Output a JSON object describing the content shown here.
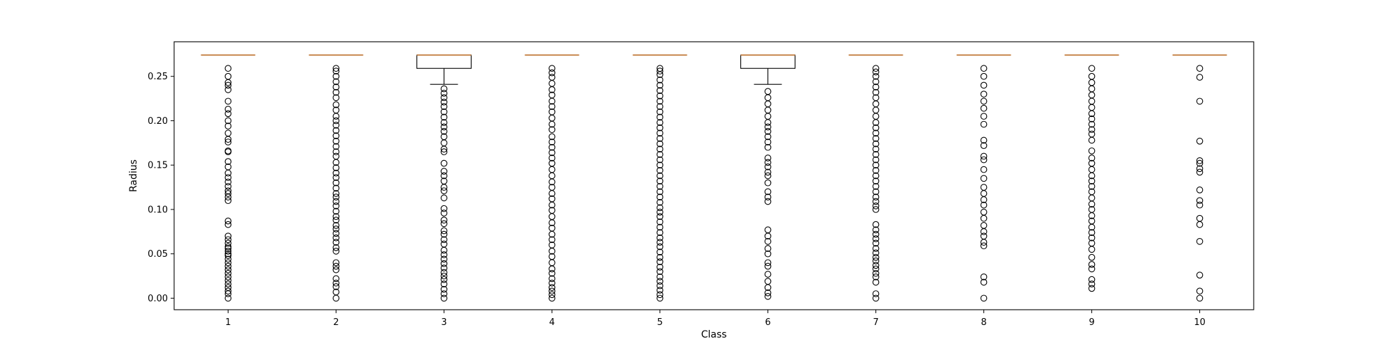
{
  "chart_data": {
    "type": "box",
    "xlabel": "Class",
    "ylabel": "Radius",
    "ylim": [
      -0.013,
      0.289
    ],
    "y_ticks": [
      "0.00",
      "0.05",
      "0.10",
      "0.15",
      "0.20",
      "0.25"
    ],
    "categories": [
      "1",
      "2",
      "3",
      "4",
      "5",
      "6",
      "7",
      "8",
      "9",
      "10"
    ],
    "grid": false,
    "legend": "none",
    "colors": {
      "median": "#c8884f",
      "box": "#000000",
      "flier": "#000000"
    },
    "boxes": [
      {
        "category": "1",
        "q1": 0.274,
        "median": 0.274,
        "q3": 0.274,
        "whisker_low": 0.274,
        "whisker_high": 0.274,
        "outliers": [
          0.0,
          0.005,
          0.008,
          0.012,
          0.016,
          0.02,
          0.024,
          0.028,
          0.032,
          0.036,
          0.04,
          0.044,
          0.048,
          0.05,
          0.053,
          0.056,
          0.058,
          0.062,
          0.066,
          0.07,
          0.083,
          0.087,
          0.11,
          0.114,
          0.118,
          0.121,
          0.126,
          0.131,
          0.136,
          0.141,
          0.148,
          0.154,
          0.165,
          0.166,
          0.176,
          0.179,
          0.186,
          0.194,
          0.2,
          0.208,
          0.213,
          0.222,
          0.235,
          0.24,
          0.243,
          0.25,
          0.259
        ]
      },
      {
        "category": "2",
        "q1": 0.274,
        "median": 0.274,
        "q3": 0.274,
        "whisker_low": 0.274,
        "whisker_high": 0.274,
        "outliers": [
          0.0,
          0.007,
          0.013,
          0.017,
          0.022,
          0.032,
          0.036,
          0.04,
          0.053,
          0.057,
          0.063,
          0.068,
          0.073,
          0.078,
          0.082,
          0.088,
          0.092,
          0.098,
          0.104,
          0.109,
          0.114,
          0.118,
          0.124,
          0.13,
          0.136,
          0.141,
          0.147,
          0.153,
          0.16,
          0.165,
          0.171,
          0.177,
          0.183,
          0.189,
          0.195,
          0.2,
          0.205,
          0.212,
          0.218,
          0.226,
          0.232,
          0.238,
          0.244,
          0.25,
          0.256,
          0.259
        ]
      },
      {
        "category": "3",
        "q1": 0.259,
        "median": 0.274,
        "q3": 0.274,
        "whisker_low": 0.241,
        "whisker_high": 0.274,
        "outliers": [
          0.0,
          0.005,
          0.01,
          0.016,
          0.021,
          0.025,
          0.029,
          0.034,
          0.039,
          0.044,
          0.049,
          0.054,
          0.061,
          0.066,
          0.072,
          0.076,
          0.084,
          0.088,
          0.096,
          0.101,
          0.113,
          0.121,
          0.125,
          0.132,
          0.138,
          0.143,
          0.152,
          0.165,
          0.168,
          0.175,
          0.182,
          0.188,
          0.193,
          0.198,
          0.204,
          0.21,
          0.216,
          0.221,
          0.226,
          0.231,
          0.236
        ]
      },
      {
        "category": "4",
        "q1": 0.274,
        "median": 0.274,
        "q3": 0.274,
        "whisker_low": 0.274,
        "whisker_high": 0.274,
        "outliers": [
          0.0,
          0.004,
          0.008,
          0.012,
          0.017,
          0.022,
          0.028,
          0.033,
          0.04,
          0.047,
          0.053,
          0.06,
          0.066,
          0.072,
          0.079,
          0.085,
          0.092,
          0.099,
          0.105,
          0.112,
          0.118,
          0.125,
          0.131,
          0.138,
          0.145,
          0.152,
          0.158,
          0.164,
          0.17,
          0.176,
          0.182,
          0.19,
          0.196,
          0.203,
          0.21,
          0.216,
          0.222,
          0.229,
          0.235,
          0.242,
          0.249,
          0.254,
          0.259
        ]
      },
      {
        "category": "5",
        "q1": 0.274,
        "median": 0.274,
        "q3": 0.274,
        "whisker_low": 0.274,
        "whisker_high": 0.274,
        "outliers": [
          0.0,
          0.004,
          0.009,
          0.014,
          0.019,
          0.024,
          0.03,
          0.035,
          0.041,
          0.046,
          0.052,
          0.058,
          0.063,
          0.068,
          0.074,
          0.08,
          0.086,
          0.092,
          0.097,
          0.102,
          0.108,
          0.114,
          0.12,
          0.126,
          0.132,
          0.138,
          0.144,
          0.15,
          0.156,
          0.162,
          0.168,
          0.174,
          0.18,
          0.186,
          0.192,
          0.198,
          0.204,
          0.21,
          0.216,
          0.222,
          0.228,
          0.234,
          0.24,
          0.246,
          0.252,
          0.256,
          0.259
        ]
      },
      {
        "category": "6",
        "q1": 0.259,
        "median": 0.274,
        "q3": 0.274,
        "whisker_low": 0.241,
        "whisker_high": 0.274,
        "outliers": [
          0.002,
          0.006,
          0.012,
          0.019,
          0.027,
          0.036,
          0.04,
          0.05,
          0.056,
          0.064,
          0.07,
          0.077,
          0.109,
          0.114,
          0.12,
          0.13,
          0.138,
          0.142,
          0.148,
          0.153,
          0.158,
          0.17,
          0.176,
          0.182,
          0.188,
          0.193,
          0.198,
          0.205,
          0.212,
          0.219,
          0.226,
          0.233
        ]
      },
      {
        "category": "7",
        "q1": 0.274,
        "median": 0.274,
        "q3": 0.274,
        "whisker_low": 0.274,
        "whisker_high": 0.274,
        "outliers": [
          0.0,
          0.005,
          0.018,
          0.024,
          0.028,
          0.033,
          0.037,
          0.042,
          0.046,
          0.051,
          0.056,
          0.062,
          0.067,
          0.072,
          0.077,
          0.083,
          0.1,
          0.104,
          0.109,
          0.114,
          0.12,
          0.126,
          0.132,
          0.138,
          0.144,
          0.15,
          0.156,
          0.162,
          0.168,
          0.174,
          0.18,
          0.186,
          0.192,
          0.198,
          0.205,
          0.212,
          0.219,
          0.226,
          0.232,
          0.238,
          0.244,
          0.25,
          0.255,
          0.259
        ]
      },
      {
        "category": "8",
        "q1": 0.274,
        "median": 0.274,
        "q3": 0.274,
        "whisker_low": 0.274,
        "whisker_high": 0.274,
        "outliers": [
          0.0,
          0.018,
          0.024,
          0.059,
          0.063,
          0.07,
          0.075,
          0.082,
          0.09,
          0.097,
          0.105,
          0.111,
          0.118,
          0.125,
          0.135,
          0.145,
          0.156,
          0.16,
          0.172,
          0.178,
          0.196,
          0.205,
          0.214,
          0.222,
          0.23,
          0.24,
          0.25,
          0.259
        ]
      },
      {
        "category": "9",
        "q1": 0.274,
        "median": 0.274,
        "q3": 0.274,
        "whisker_low": 0.274,
        "whisker_high": 0.274,
        "outliers": [
          0.011,
          0.016,
          0.021,
          0.033,
          0.038,
          0.046,
          0.055,
          0.062,
          0.068,
          0.074,
          0.08,
          0.087,
          0.093,
          0.1,
          0.106,
          0.113,
          0.12,
          0.126,
          0.132,
          0.138,
          0.145,
          0.152,
          0.158,
          0.166,
          0.178,
          0.185,
          0.19,
          0.196,
          0.202,
          0.208,
          0.215,
          0.222,
          0.229,
          0.236,
          0.243,
          0.25,
          0.259
        ]
      },
      {
        "category": "10",
        "q1": 0.274,
        "median": 0.274,
        "q3": 0.274,
        "whisker_low": 0.274,
        "whisker_high": 0.274,
        "outliers": [
          0.0,
          0.008,
          0.026,
          0.064,
          0.083,
          0.09,
          0.105,
          0.11,
          0.122,
          0.142,
          0.146,
          0.152,
          0.155,
          0.177,
          0.222,
          0.249,
          0.259
        ]
      }
    ]
  }
}
